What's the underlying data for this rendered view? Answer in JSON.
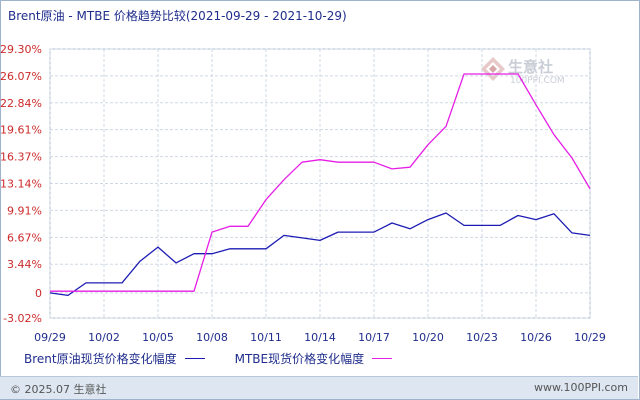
{
  "title": "Brent原油 - MTBE 价格趋势比较(2021-09-29 - 2021-10-29)",
  "watermark": {
    "brand": "生意社",
    "url": "100PPI.COM"
  },
  "footer": {
    "copyright": "© 2025.07 生意社",
    "site": "www.100PPI.com"
  },
  "colors": {
    "brent": "#1c1cb4",
    "mtbe": "#e61ee6",
    "grid": "#cfd8e4",
    "ytick": "#cc2a2a",
    "xtick": "#1f2d8c"
  },
  "chart_data": {
    "type": "line",
    "title": "Brent原油 - MTBE 价格趋势比较(2021-09-29 - 2021-10-29)",
    "ylim": [
      -3.02,
      29.3
    ],
    "yticks": [
      "29.30%",
      "26.07%",
      "22.84%",
      "19.61%",
      "16.37%",
      "13.14%",
      "9.91%",
      "6.67%",
      "3.44%",
      "0",
      "-3.02%"
    ],
    "ytick_values": [
      29.3,
      26.07,
      22.84,
      19.61,
      16.37,
      13.14,
      9.91,
      6.67,
      3.44,
      0,
      -3.02
    ],
    "xlim": [
      "09/29",
      "10/29"
    ],
    "xticks": [
      "09/29",
      "10/02",
      "10/05",
      "10/08",
      "10/11",
      "10/14",
      "10/17",
      "10/20",
      "10/23",
      "10/26",
      "10/29"
    ],
    "grid": true,
    "legend_position": "bottom",
    "series": [
      {
        "name": "Brent原油现货价格变化幅度",
        "points": [
          [
            "09/29",
            0
          ],
          [
            "09/30",
            -0.3
          ],
          [
            "10/01",
            1.2
          ],
          [
            "10/02",
            1.2
          ],
          [
            "10/03",
            1.2
          ],
          [
            "10/04",
            3.8
          ],
          [
            "10/05",
            5.5
          ],
          [
            "10/06",
            3.6
          ],
          [
            "10/07",
            4.7
          ],
          [
            "10/08",
            4.7
          ],
          [
            "10/09",
            5.3
          ],
          [
            "10/10",
            5.3
          ],
          [
            "10/11",
            5.3
          ],
          [
            "10/12",
            6.9
          ],
          [
            "10/13",
            6.6
          ],
          [
            "10/14",
            6.3
          ],
          [
            "10/15",
            7.3
          ],
          [
            "10/16",
            7.3
          ],
          [
            "10/17",
            7.3
          ],
          [
            "10/18",
            8.4
          ],
          [
            "10/19",
            7.7
          ],
          [
            "10/20",
            8.8
          ],
          [
            "10/21",
            9.6
          ],
          [
            "10/22",
            8.1
          ],
          [
            "10/23",
            8.1
          ],
          [
            "10/24",
            8.1
          ],
          [
            "10/25",
            9.3
          ],
          [
            "10/26",
            8.8
          ],
          [
            "10/27",
            9.5
          ],
          [
            "10/28",
            7.2
          ],
          [
            "10/29",
            6.9
          ]
        ]
      },
      {
        "name": "MTBE现货价格变化幅度",
        "points": [
          [
            "09/29",
            0.2
          ],
          [
            "09/30",
            0.2
          ],
          [
            "10/01",
            0.2
          ],
          [
            "10/02",
            0.2
          ],
          [
            "10/03",
            0.2
          ],
          [
            "10/04",
            0.2
          ],
          [
            "10/05",
            0.2
          ],
          [
            "10/06",
            0.2
          ],
          [
            "10/07",
            0.2
          ],
          [
            "10/08",
            7.3
          ],
          [
            "10/09",
            8.0
          ],
          [
            "10/10",
            8.0
          ],
          [
            "10/11",
            11.2
          ],
          [
            "10/12",
            13.6
          ],
          [
            "10/13",
            15.7
          ],
          [
            "10/14",
            16.0
          ],
          [
            "10/15",
            15.7
          ],
          [
            "10/16",
            15.7
          ],
          [
            "10/17",
            15.7
          ],
          [
            "10/18",
            14.9
          ],
          [
            "10/19",
            15.1
          ],
          [
            "10/20",
            17.8
          ],
          [
            "10/21",
            20.0
          ],
          [
            "10/22",
            26.3
          ],
          [
            "10/23",
            26.3
          ],
          [
            "10/24",
            26.3
          ],
          [
            "10/25",
            26.3
          ],
          [
            "10/26",
            22.6
          ],
          [
            "10/27",
            19.0
          ],
          [
            "10/28",
            16.2
          ],
          [
            "10/29",
            12.5
          ]
        ]
      }
    ]
  }
}
